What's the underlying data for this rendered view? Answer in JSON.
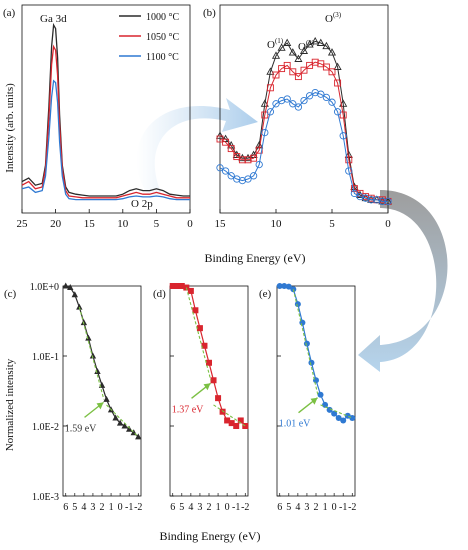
{
  "colors": {
    "s1000": "#2b2b2b",
    "s1050": "#d9252e",
    "s1100": "#2f79d2",
    "fit": "#7bc043",
    "arrow": "#9ec5e8"
  },
  "shared": {
    "xlabel_top": "Binding Energy (eV)",
    "xlabel_bottom": "Binding Energy (eV)",
    "ylabel_top": "Intensity (arb. units)",
    "ylabel_bottom": "Normalized intensity"
  },
  "chart_data": [
    {
      "panel": "(a)",
      "type": "line",
      "xlim": [
        25,
        0
      ],
      "xticks": [
        "25",
        "20",
        "15",
        "10",
        "5",
        "0"
      ],
      "annotations": [
        "Ga 3d",
        "O 2p"
      ],
      "legend_position": "top-right",
      "series": [
        {
          "name": "1000 °C",
          "color_key": "s1000",
          "x": [
            25,
            24,
            23,
            22,
            21.5,
            21,
            20.6,
            20.3,
            20,
            19.7,
            19.4,
            19,
            18.5,
            18,
            17,
            16,
            15,
            14,
            13,
            12,
            11,
            10,
            9,
            8,
            7,
            6,
            5,
            4,
            3,
            2,
            1,
            0
          ],
          "y": [
            0.13,
            0.15,
            0.11,
            0.12,
            0.22,
            0.55,
            0.88,
            1.0,
            0.98,
            0.82,
            0.5,
            0.22,
            0.1,
            0.07,
            0.06,
            0.055,
            0.05,
            0.05,
            0.05,
            0.05,
            0.05,
            0.06,
            0.08,
            0.09,
            0.08,
            0.08,
            0.09,
            0.08,
            0.06,
            0.055,
            0.05,
            0.05
          ]
        },
        {
          "name": "1050 °C",
          "color_key": "s1050",
          "x": [
            25,
            24,
            23,
            22,
            21.5,
            21,
            20.6,
            20.3,
            20,
            19.7,
            19.4,
            19,
            18.5,
            18,
            17,
            16,
            15,
            14,
            13,
            12,
            11,
            10,
            9,
            8,
            7,
            6,
            5,
            4,
            3,
            2,
            1,
            0
          ],
          "y": [
            0.11,
            0.13,
            0.09,
            0.1,
            0.2,
            0.48,
            0.78,
            0.88,
            0.86,
            0.72,
            0.44,
            0.2,
            0.08,
            0.05,
            0.045,
            0.04,
            0.04,
            0.04,
            0.04,
            0.04,
            0.04,
            0.05,
            0.06,
            0.07,
            0.06,
            0.06,
            0.07,
            0.06,
            0.05,
            0.04,
            0.04,
            0.04
          ]
        },
        {
          "name": "1100 °C",
          "color_key": "s1100",
          "x": [
            25,
            24,
            23,
            22,
            21.5,
            21,
            20.6,
            20.3,
            20,
            19.7,
            19.4,
            19,
            18.5,
            18,
            17,
            16,
            15,
            14,
            13,
            12,
            11,
            10,
            9,
            8,
            7,
            6,
            5,
            4,
            3,
            2,
            1,
            0
          ],
          "y": [
            0.09,
            0.1,
            0.07,
            0.08,
            0.16,
            0.38,
            0.6,
            0.69,
            0.68,
            0.57,
            0.35,
            0.16,
            0.06,
            0.035,
            0.03,
            0.03,
            0.03,
            0.03,
            0.03,
            0.03,
            0.03,
            0.035,
            0.045,
            0.05,
            0.045,
            0.045,
            0.05,
            0.045,
            0.035,
            0.03,
            0.03,
            0.03
          ]
        }
      ]
    },
    {
      "panel": "(b)",
      "type": "scatter",
      "xlim": [
        15,
        0
      ],
      "xticks": [
        "15",
        "10",
        "5",
        "0"
      ],
      "annotations": [
        "O",
        "(1)",
        "O",
        "(2)",
        "O",
        "(3)"
      ],
      "series": [
        {
          "name": "1000 °C",
          "color_key": "s1000",
          "marker": "triangle",
          "x": [
            15,
            14.5,
            14,
            13.5,
            13,
            12.5,
            12,
            11.5,
            11,
            10.5,
            10,
            9.5,
            9,
            8.5,
            8,
            7.5,
            7,
            6.5,
            6,
            5.5,
            5,
            4.5,
            4,
            3.5,
            3,
            2.5,
            2,
            1.5,
            1,
            0.5,
            0
          ],
          "y": [
            0.42,
            0.4,
            0.36,
            0.3,
            0.28,
            0.28,
            0.3,
            0.36,
            0.62,
            0.82,
            0.92,
            0.97,
            1.0,
            0.94,
            0.9,
            0.95,
            0.99,
            1.01,
            1.0,
            0.98,
            0.94,
            0.85,
            0.62,
            0.3,
            0.1,
            0.05,
            0.03,
            0.02,
            0.02,
            0.01,
            0.01
          ]
        },
        {
          "name": "1050 °C",
          "color_key": "s1050",
          "marker": "square",
          "x": [
            15,
            14.5,
            14,
            13.5,
            13,
            12.5,
            12,
            11.5,
            11,
            10.5,
            10,
            9.5,
            9,
            8.5,
            8,
            7.5,
            7,
            6.5,
            6,
            5.5,
            5,
            4.5,
            4,
            3.5,
            3,
            2.5,
            2,
            1.5,
            1,
            0.5,
            0
          ],
          "y": [
            0.4,
            0.38,
            0.34,
            0.29,
            0.27,
            0.27,
            0.28,
            0.33,
            0.55,
            0.72,
            0.8,
            0.84,
            0.86,
            0.82,
            0.79,
            0.83,
            0.86,
            0.88,
            0.87,
            0.85,
            0.82,
            0.75,
            0.55,
            0.27,
            0.09,
            0.06,
            0.04,
            0.03,
            0.02,
            0.02,
            0.01
          ]
        },
        {
          "name": "1100 °C",
          "color_key": "s1100",
          "marker": "circle",
          "x": [
            15,
            14.5,
            14,
            13.5,
            13,
            12.5,
            12,
            11.5,
            11,
            10.5,
            10,
            9.5,
            9,
            8.5,
            8,
            7.5,
            7,
            6.5,
            6,
            5.5,
            5,
            4.5,
            4,
            3.5,
            3,
            2.5,
            2,
            1.5,
            1,
            0.5,
            0
          ],
          "y": [
            0.22,
            0.2,
            0.17,
            0.15,
            0.14,
            0.15,
            0.17,
            0.24,
            0.44,
            0.57,
            0.62,
            0.64,
            0.65,
            0.62,
            0.6,
            0.64,
            0.67,
            0.69,
            0.68,
            0.66,
            0.63,
            0.57,
            0.42,
            0.2,
            0.06,
            0.04,
            0.03,
            0.02,
            0.02,
            0.01,
            0.01
          ]
        }
      ]
    },
    {
      "panel": "(c)",
      "type": "scatter",
      "yscale": "log",
      "ylim": [
        0.001,
        1
      ],
      "yticks": [
        "1.0E+0",
        "1.0E-1",
        "1.0E-2",
        "1.0E-3"
      ],
      "xticks": [
        "6",
        "5",
        "4",
        "3",
        "2",
        "1",
        "0",
        "-1",
        "-2"
      ],
      "xlim": [
        6.3,
        -2.3
      ],
      "color_key": "s1000",
      "marker": "triangle",
      "annotation": "1.59 eV",
      "x": [
        6,
        5.5,
        5,
        4.5,
        4,
        3.5,
        3,
        2.5,
        2,
        1.5,
        1,
        0.5,
        0,
        -0.5,
        -1,
        -1.5,
        -2
      ],
      "y": [
        1.0,
        0.95,
        0.75,
        0.5,
        0.3,
        0.18,
        0.1,
        0.06,
        0.038,
        0.024,
        0.017,
        0.013,
        0.011,
        0.01,
        0.009,
        0.008,
        0.007
      ]
    },
    {
      "panel": "(d)",
      "type": "scatter",
      "yscale": "log",
      "ylim": [
        0.001,
        1
      ],
      "xticks": [
        "6",
        "5",
        "4",
        "3",
        "2",
        "1",
        "0",
        "-1",
        "-2"
      ],
      "xlim": [
        6.3,
        -2.3
      ],
      "color_key": "s1050",
      "marker": "square",
      "annotation": "1.37 eV",
      "x": [
        6,
        5.5,
        5,
        4.5,
        4,
        3.5,
        3,
        2.5,
        2,
        1.5,
        1,
        0.5,
        0,
        -0.5,
        -1,
        -1.5,
        -2
      ],
      "y": [
        1.0,
        1.0,
        1.0,
        0.95,
        0.85,
        0.45,
        0.25,
        0.14,
        0.08,
        0.045,
        0.025,
        0.016,
        0.012,
        0.011,
        0.01,
        0.012,
        0.01
      ]
    },
    {
      "panel": "(e)",
      "type": "scatter",
      "yscale": "log",
      "ylim": [
        0.001,
        1
      ],
      "xticks": [
        "6",
        "5",
        "4",
        "3",
        "2",
        "1",
        "0",
        "-1",
        "-2"
      ],
      "xlim": [
        6.3,
        -2.3
      ],
      "color_key": "s1100",
      "marker": "circle",
      "annotation": "1.01 eV",
      "x": [
        6,
        5.5,
        5,
        4.5,
        4,
        3.5,
        3,
        2.5,
        2,
        1.5,
        1,
        0.5,
        0,
        -0.5,
        -1,
        -1.5,
        -2
      ],
      "y": [
        1.0,
        1.0,
        0.98,
        0.9,
        0.55,
        0.3,
        0.15,
        0.08,
        0.045,
        0.028,
        0.02,
        0.017,
        0.015,
        0.013,
        0.012,
        0.014,
        0.013
      ]
    }
  ]
}
